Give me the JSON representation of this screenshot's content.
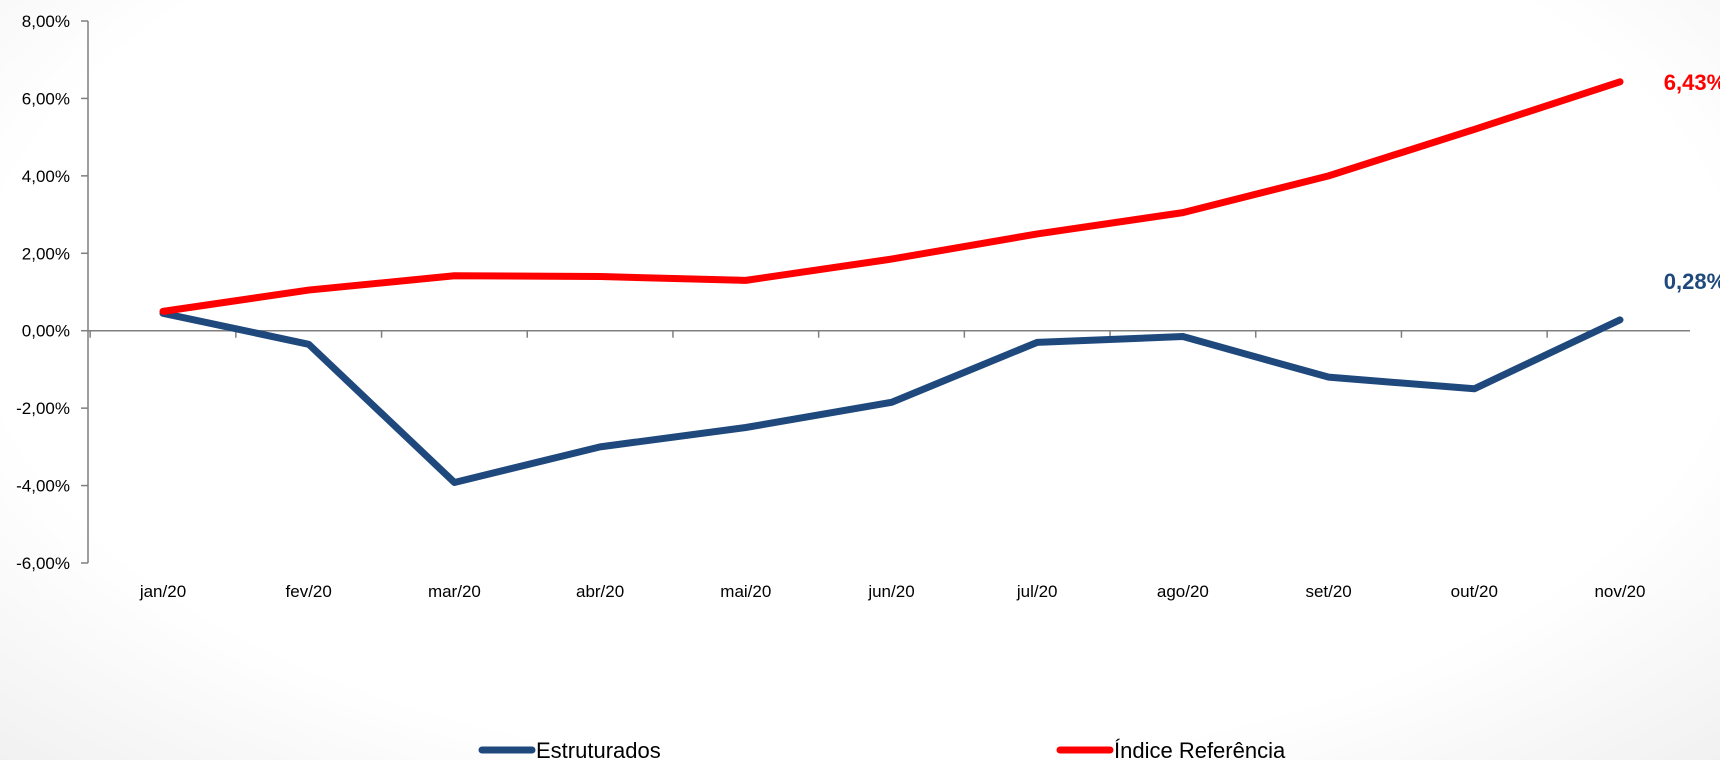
{
  "chart_data": {
    "type": "line",
    "categories": [
      "jan/20",
      "fev/20",
      "mar/20",
      "abr/20",
      "mai/20",
      "jun/20",
      "jul/20",
      "ago/20",
      "set/20",
      "out/20",
      "nov/20"
    ],
    "series": [
      {
        "name": "Estruturados",
        "color": "#1f497d",
        "values": [
          0.45,
          -0.35,
          -3.92,
          -3.0,
          -2.5,
          -1.85,
          -0.3,
          -0.15,
          -1.2,
          -1.5,
          0.28
        ],
        "end_label": "0,28%"
      },
      {
        "name": "Índice Referência",
        "color": "#ff0000",
        "values": [
          0.5,
          1.05,
          1.42,
          1.4,
          1.3,
          1.85,
          2.5,
          3.05,
          4.0,
          5.2,
          6.43
        ],
        "end_label": "6,43%"
      }
    ],
    "ylim": [
      -6,
      8
    ],
    "yticks": [
      {
        "value": 8,
        "label": "8,00%"
      },
      {
        "value": 6,
        "label": "6,00%"
      },
      {
        "value": 4,
        "label": "4,00%"
      },
      {
        "value": 2,
        "label": "2,00%"
      },
      {
        "value": 0,
        "label": "0,00%"
      },
      {
        "value": -2,
        "label": "-2,00%"
      },
      {
        "value": -4,
        "label": "-4,00%"
      },
      {
        "value": -6,
        "label": "-6,00%"
      }
    ],
    "title": "",
    "xlabel": "",
    "ylabel": "",
    "legend_position": "bottom",
    "grid": false
  }
}
